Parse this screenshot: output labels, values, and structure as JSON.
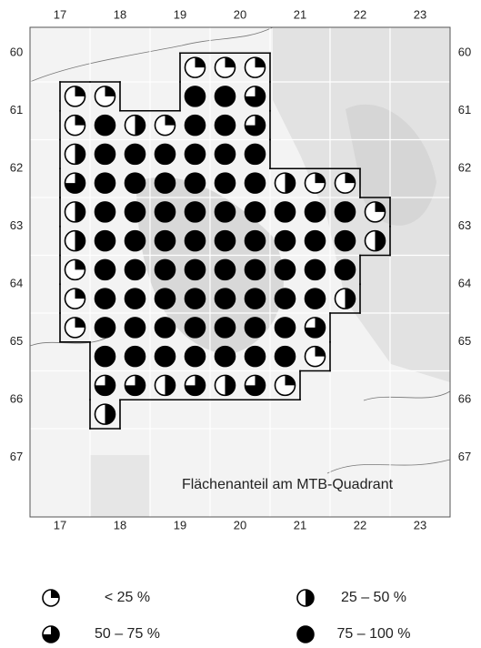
{
  "title": "Flächenanteil am MTB-Quadrant",
  "columns": [
    "17",
    "18",
    "19",
    "20",
    "21",
    "22",
    "23"
  ],
  "rows": [
    "60",
    "61",
    "62",
    "63",
    "64",
    "65",
    "66",
    "67"
  ],
  "legend": [
    {
      "label": "< 25 %"
    },
    {
      "label": "25 –  50 %"
    },
    {
      "label": "50 – 75 %"
    },
    {
      "label": "75 – 100 %"
    }
  ],
  "quadrants": [
    [
      null,
      null,
      null,
      null,
      null,
      null,
      null,
      null,
      null,
      null,
      null,
      null,
      null,
      null
    ],
    [
      null,
      null,
      null,
      null,
      null,
      0,
      0,
      0,
      null,
      null,
      null,
      null,
      null,
      null
    ],
    [
      null,
      0,
      0,
      null,
      null,
      3,
      3,
      2,
      null,
      null,
      null,
      null,
      null,
      null
    ],
    [
      null,
      0,
      3,
      1,
      0,
      3,
      3,
      2,
      null,
      null,
      null,
      null,
      null,
      null
    ],
    [
      null,
      1,
      3,
      3,
      3,
      3,
      3,
      3,
      null,
      null,
      null,
      null,
      null,
      null
    ],
    [
      null,
      2,
      3,
      3,
      3,
      3,
      3,
      3,
      1,
      0,
      0,
      null,
      null,
      null
    ],
    [
      null,
      1,
      3,
      3,
      3,
      3,
      3,
      3,
      3,
      3,
      3,
      0,
      null,
      null
    ],
    [
      null,
      1,
      3,
      3,
      3,
      3,
      3,
      3,
      3,
      3,
      3,
      1,
      null,
      null
    ],
    [
      null,
      0,
      3,
      3,
      3,
      3,
      3,
      3,
      3,
      3,
      3,
      null,
      null,
      null
    ],
    [
      null,
      0,
      3,
      3,
      3,
      3,
      3,
      3,
      3,
      3,
      1,
      null,
      null,
      null
    ],
    [
      null,
      0,
      3,
      3,
      3,
      3,
      3,
      3,
      3,
      2,
      null,
      null,
      null,
      null
    ],
    [
      null,
      null,
      3,
      3,
      3,
      3,
      3,
      3,
      3,
      0,
      null,
      null,
      null,
      null
    ],
    [
      null,
      null,
      2,
      2,
      1,
      2,
      1,
      2,
      0,
      null,
      null,
      null,
      null,
      null
    ],
    [
      null,
      null,
      1,
      null,
      null,
      null,
      null,
      null,
      null,
      null,
      null,
      null,
      null,
      null
    ]
  ]
}
